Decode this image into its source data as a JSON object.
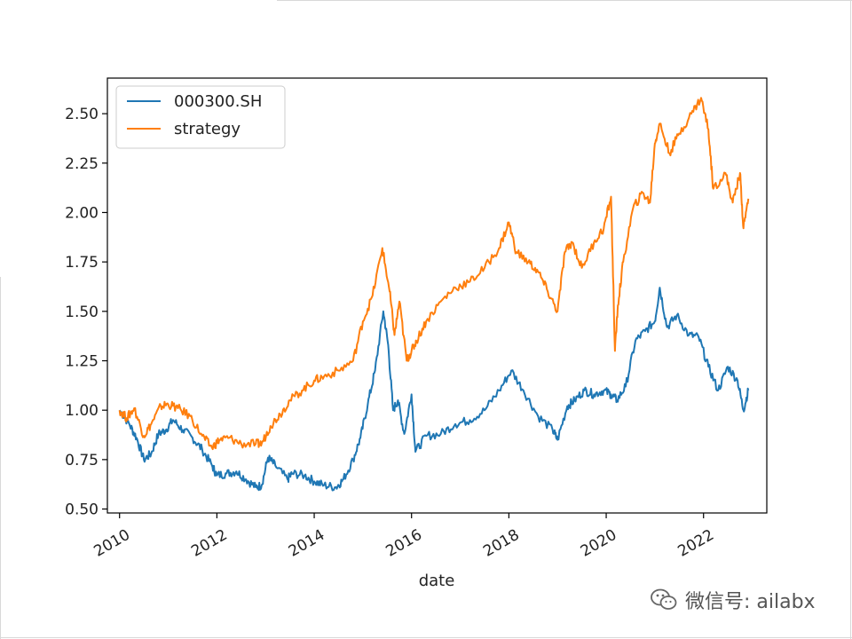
{
  "chart_data": {
    "type": "line",
    "title": "",
    "xlabel": "date",
    "ylabel": "",
    "xlim": [
      2009.75,
      2023.3
    ],
    "ylim": [
      0.48,
      2.68
    ],
    "yticks": [
      0.5,
      0.75,
      1.0,
      1.25,
      1.5,
      1.75,
      2.0,
      2.25,
      2.5
    ],
    "ytick_labels": [
      "0.50",
      "0.75",
      "1.00",
      "1.25",
      "1.50",
      "1.75",
      "2.00",
      "2.25",
      "2.50"
    ],
    "xticks": [
      2010,
      2012,
      2014,
      2016,
      2018,
      2020,
      2022
    ],
    "xtick_labels": [
      "2010",
      "2012",
      "2014",
      "2016",
      "2018",
      "2020",
      "2022"
    ],
    "grid": false,
    "legend_position": "top-left",
    "series": [
      {
        "name": "000300.SH",
        "color": "#1f77b4",
        "x": [
          2010.0,
          2010.2,
          2010.35,
          2010.5,
          2010.65,
          2010.8,
          2010.95,
          2011.1,
          2011.3,
          2011.5,
          2011.7,
          2011.9,
          2012.0,
          2012.2,
          2012.4,
          2012.6,
          2012.8,
          2012.92,
          2013.05,
          2013.2,
          2013.45,
          2013.55,
          2013.8,
          2014.0,
          2014.2,
          2014.45,
          2014.6,
          2014.8,
          2014.95,
          2015.1,
          2015.25,
          2015.42,
          2015.52,
          2015.62,
          2015.72,
          2015.85,
          2016.0,
          2016.08,
          2016.3,
          2016.6,
          2016.9,
          2017.2,
          2017.5,
          2017.8,
          2018.05,
          2018.3,
          2018.6,
          2018.9,
          2019.0,
          2019.2,
          2019.35,
          2019.55,
          2019.75,
          2019.95,
          2020.1,
          2020.22,
          2020.4,
          2020.6,
          2020.8,
          2021.0,
          2021.1,
          2021.25,
          2021.45,
          2021.7,
          2021.9,
          2022.1,
          2022.3,
          2022.5,
          2022.7,
          2022.82,
          2022.92
        ],
        "values": [
          1.0,
          0.93,
          0.86,
          0.75,
          0.78,
          0.88,
          0.9,
          0.95,
          0.9,
          0.86,
          0.8,
          0.72,
          0.67,
          0.68,
          0.69,
          0.65,
          0.61,
          0.62,
          0.76,
          0.72,
          0.65,
          0.68,
          0.67,
          0.64,
          0.62,
          0.61,
          0.65,
          0.75,
          0.86,
          1.03,
          1.2,
          1.5,
          1.33,
          1.0,
          1.05,
          0.88,
          1.08,
          0.79,
          0.87,
          0.88,
          0.93,
          0.95,
          1.0,
          1.1,
          1.2,
          1.1,
          0.97,
          0.9,
          0.85,
          1.02,
          1.05,
          1.1,
          1.08,
          1.1,
          1.08,
          1.05,
          1.12,
          1.35,
          1.4,
          1.45,
          1.62,
          1.42,
          1.48,
          1.38,
          1.37,
          1.22,
          1.1,
          1.22,
          1.15,
          1.0,
          1.1
        ]
      },
      {
        "name": "strategy",
        "color": "#ff7f0e",
        "x": [
          2010.0,
          2010.15,
          2010.3,
          2010.5,
          2010.65,
          2010.85,
          2011.0,
          2011.2,
          2011.45,
          2011.7,
          2011.9,
          2012.05,
          2012.25,
          2012.5,
          2012.8,
          2012.92,
          2013.1,
          2013.3,
          2013.5,
          2013.75,
          2014.0,
          2014.2,
          2014.5,
          2014.8,
          2015.0,
          2015.2,
          2015.4,
          2015.55,
          2015.65,
          2015.75,
          2015.9,
          2016.0,
          2016.1,
          2016.3,
          2016.6,
          2016.9,
          2017.2,
          2017.5,
          2017.8,
          2018.0,
          2018.15,
          2018.4,
          2018.6,
          2018.8,
          2019.0,
          2019.15,
          2019.3,
          2019.5,
          2019.75,
          2019.95,
          2020.1,
          2020.18,
          2020.24,
          2020.35,
          2020.55,
          2020.75,
          2020.9,
          2021.0,
          2021.1,
          2021.3,
          2021.5,
          2021.75,
          2021.95,
          2022.1,
          2022.2,
          2022.45,
          2022.6,
          2022.75,
          2022.82,
          2022.92
        ],
        "values": [
          1.0,
          0.96,
          1.01,
          0.87,
          0.93,
          1.02,
          1.03,
          1.01,
          0.97,
          0.87,
          0.81,
          0.85,
          0.86,
          0.83,
          0.83,
          0.83,
          0.92,
          0.98,
          1.05,
          1.1,
          1.15,
          1.17,
          1.2,
          1.25,
          1.45,
          1.58,
          1.82,
          1.6,
          1.38,
          1.55,
          1.25,
          1.3,
          1.35,
          1.45,
          1.55,
          1.62,
          1.65,
          1.72,
          1.82,
          1.95,
          1.8,
          1.75,
          1.7,
          1.6,
          1.5,
          1.8,
          1.85,
          1.72,
          1.85,
          1.92,
          2.08,
          1.3,
          1.53,
          1.75,
          2.02,
          2.1,
          2.05,
          2.35,
          2.45,
          2.3,
          2.4,
          2.5,
          2.58,
          2.42,
          2.12,
          2.2,
          2.05,
          2.2,
          1.92,
          2.07
        ]
      }
    ]
  },
  "watermark": {
    "text": "微信号: ailabx",
    "icon": "wechat-icon"
  }
}
